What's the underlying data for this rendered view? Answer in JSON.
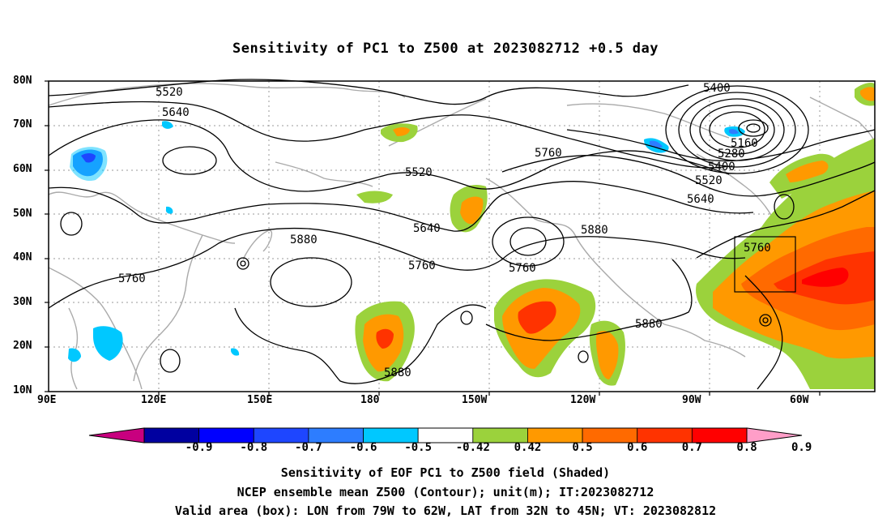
{
  "title": "Sensitivity of PC1 to Z500 at 2023082712 +0.5 day",
  "axes": {
    "lat_labels": [
      "80N",
      "70N",
      "60N",
      "50N",
      "40N",
      "30N",
      "20N",
      "10N"
    ],
    "lon_labels": [
      "90E",
      "120E",
      "150E",
      "180",
      "150W",
      "120W",
      "90W",
      "60W"
    ]
  },
  "contour_labels": [
    "5520",
    "5640",
    "5400",
    "5160",
    "5280",
    "5400",
    "5520",
    "5640",
    "5760",
    "5520",
    "5640",
    "5760",
    "5760",
    "5880",
    "5760",
    "5880",
    "5880",
    "5880",
    "5760"
  ],
  "colorbar": {
    "tick_labels": [
      "-0.9",
      "-0.8",
      "-0.7",
      "-0.6",
      "-0.5",
      "-0.42",
      "0.42",
      "0.5",
      "0.6",
      "0.7",
      "0.8",
      "0.9"
    ],
    "colors": [
      "#c8007f",
      "#0000a0",
      "#0000ff",
      "#1e46ff",
      "#2d7dff",
      "#00c8ff",
      "#ffffff",
      "#9bd23c",
      "#ff9900",
      "#ff6a00",
      "#ff3300",
      "#ff0000",
      "#ff9ec8"
    ]
  },
  "validation_box": "Valid area (box)",
  "footer": {
    "line1": "Sensitivity of EOF PC1 to Z500 field (Shaded)",
    "line2": "NCEP ensemble mean Z500 (Contour); unit(m); IT:2023082712",
    "line3": "Valid area (box): LON from 79W to 62W, LAT from 32N to 45N; VT: 2023082812"
  }
}
